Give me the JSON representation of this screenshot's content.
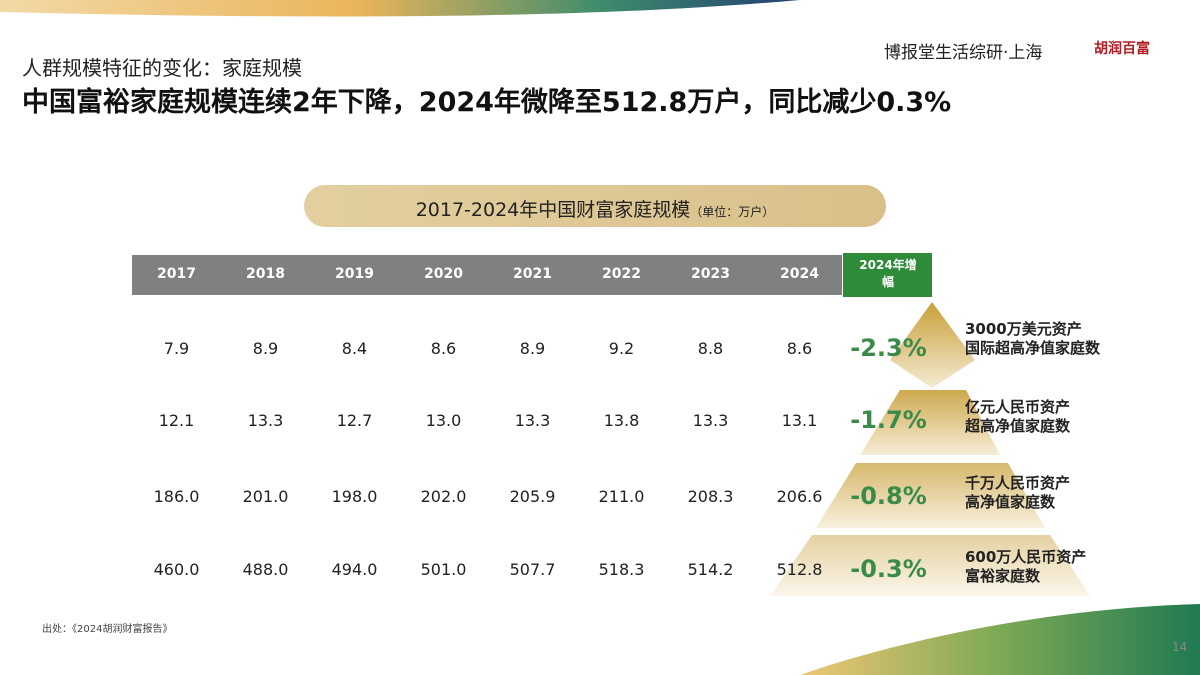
{
  "header": {
    "subtitle": "人群规模特征的变化：家庭规模",
    "title": "中国富裕家庭规模连续2年下降，2024年微降至512.8万户，同比减少0.3%",
    "brand": "博报堂生活综研·上海",
    "logo": "胡润百富"
  },
  "table": {
    "caption": "2017-2024年中国财富家庭规模",
    "unit": "（单位：万户）",
    "columns": [
      "2017",
      "2018",
      "2019",
      "2020",
      "2021",
      "2022",
      "2023",
      "2024",
      "2024年增幅"
    ],
    "rows": [
      [
        "7.9",
        "8.9",
        "8.4",
        "8.6",
        "8.9",
        "9.2",
        "8.8",
        "8.6",
        "-2.3%"
      ],
      [
        "12.1",
        "13.3",
        "12.7",
        "13.0",
        "13.3",
        "13.8",
        "13.3",
        "13.1",
        "-1.7%"
      ],
      [
        "186.0",
        "201.0",
        "198.0",
        "202.0",
        "205.9",
        "211.0",
        "208.3",
        "206.6",
        "-0.8%"
      ],
      [
        "460.0",
        "488.0",
        "494.0",
        "501.0",
        "507.7",
        "518.3",
        "514.2",
        "512.8",
        "-0.3%"
      ]
    ]
  },
  "pyramid": [
    [
      "3000万美元资产",
      "国际超高净值家庭数"
    ],
    [
      "亿元人民币资产",
      "超高净值家庭数"
    ],
    [
      "千万人民币资产",
      "高净值家庭数"
    ],
    [
      "600万人民币资产",
      "富裕家庭数"
    ]
  ],
  "footer": {
    "source": "出处：《2024胡润财富报告》",
    "page": "14"
  }
}
